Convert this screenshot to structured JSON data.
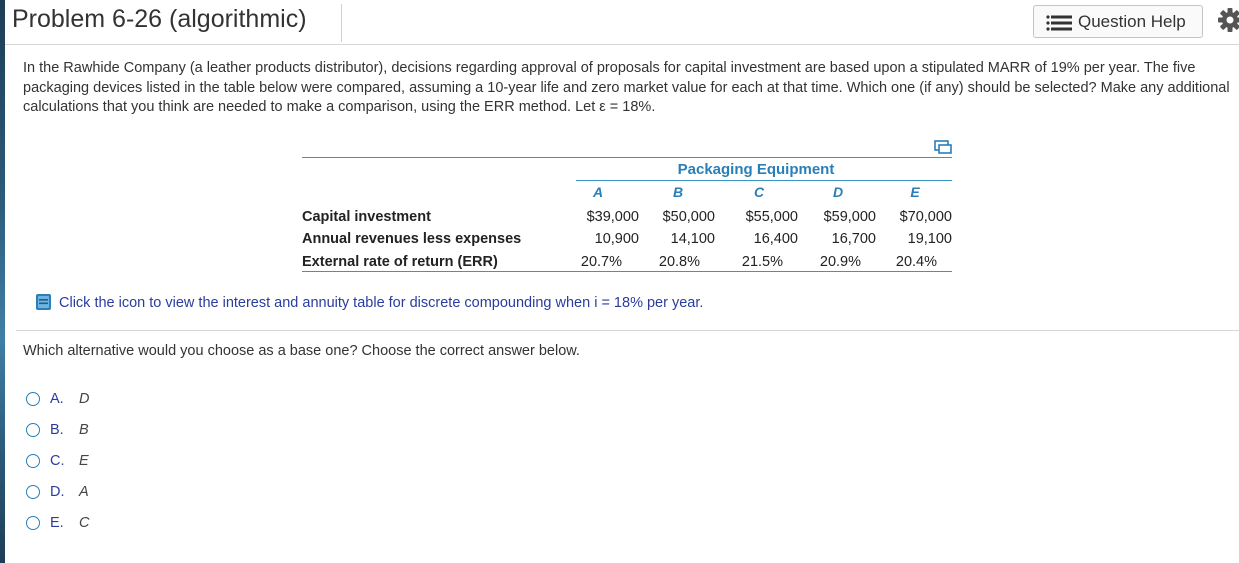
{
  "header": {
    "title": "Problem 6-26 (algorithmic)",
    "question_help_label": "Question Help"
  },
  "intro": "In the Rawhide Company (a leather products distributor), decisions regarding approval of proposals for capital investment are based upon a stipulated MARR of 19% per year. The five packaging devices listed in the table below were compared, assuming a 10-year life and zero market value for each at that time. Which one (if any) should be selected? Make any additional calculations that you think are needed to make a comparison, using the ERR method. Let ε = 18%.",
  "table": {
    "group_header": "Packaging Equipment",
    "columns": [
      "A",
      "B",
      "C",
      "D",
      "E"
    ],
    "rows": [
      {
        "label": "Capital investment",
        "values": [
          "$39,000",
          "$50,000",
          "$55,000",
          "$59,000",
          "$70,000"
        ]
      },
      {
        "label": "Annual revenues less expenses",
        "values": [
          "10,900",
          "14,100",
          "16,400",
          "16,700",
          "19,100"
        ]
      },
      {
        "label": "External rate of return (ERR)",
        "values": [
          "20.7%",
          "20.8%",
          "21.5%",
          "20.9%",
          "20.4%"
        ]
      }
    ]
  },
  "click_text": "Click the icon to view the interest and annuity table for discrete compounding when i = 18% per year.",
  "question": "Which alternative would you choose as a base one? Choose the correct answer below.",
  "options": [
    {
      "letter": "A.",
      "value": "D"
    },
    {
      "letter": "B.",
      "value": "B"
    },
    {
      "letter": "C.",
      "value": "E"
    },
    {
      "letter": "D.",
      "value": "A"
    },
    {
      "letter": "E.",
      "value": "C"
    }
  ],
  "colors": {
    "accent_blue": "#2a7fb8",
    "link_blue": "#2a3d9e",
    "rule_blue": "#3a94c8"
  }
}
